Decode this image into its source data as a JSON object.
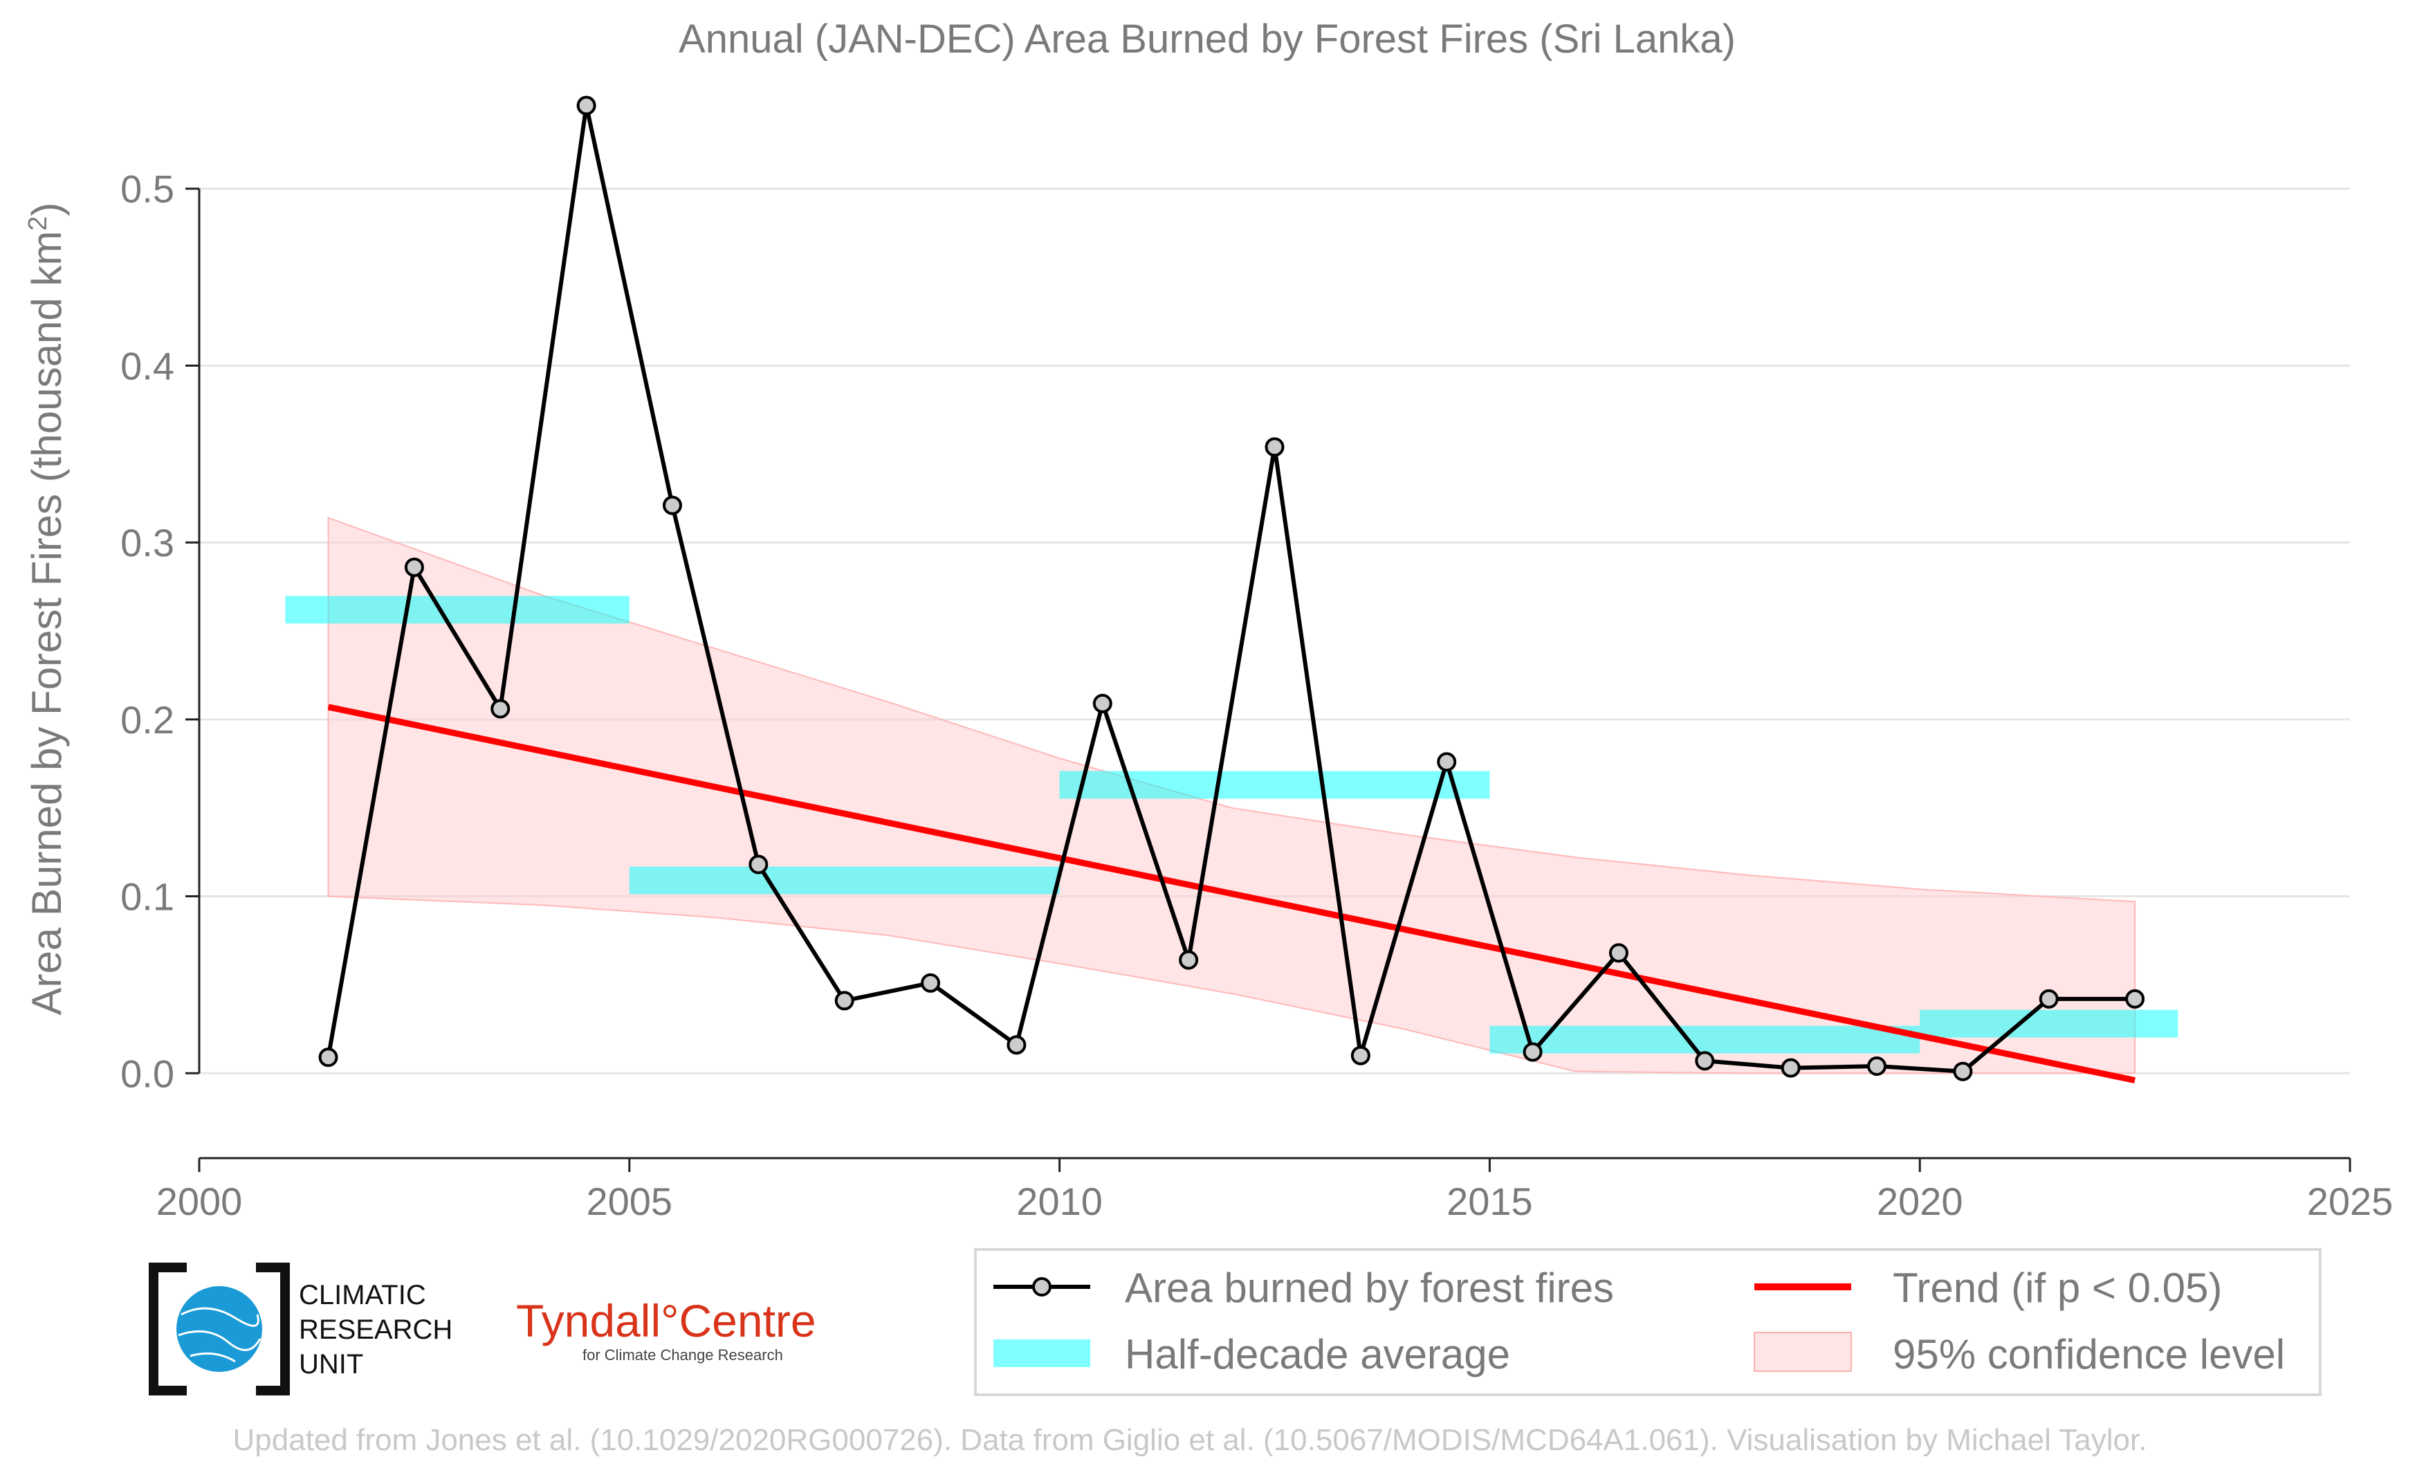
{
  "chart_data": {
    "type": "line",
    "title": "Annual (JAN-DEC) Area Burned by Forest Fires (Sri Lanka)",
    "xlabel": "",
    "ylabel": "Area Burned by Forest Fires (thousand km²)",
    "ylabel_parts": {
      "main": "Area Burned by Forest Fires (thousand km",
      "sup": "2",
      "end": ")"
    },
    "xlim": [
      2000,
      2025
    ],
    "ylim": [
      -0.048,
      0.548
    ],
    "x_ticks": [
      2000,
      2005,
      2010,
      2015,
      2020,
      2025
    ],
    "y_ticks": [
      0.0,
      0.1,
      0.2,
      0.3,
      0.4,
      0.5
    ],
    "y_tick_labels": [
      "0.0",
      "0.1",
      "0.2",
      "0.3",
      "0.4",
      "0.5"
    ],
    "grid": true,
    "series": [
      {
        "name": "Area burned by forest fires",
        "kind": "line-markers",
        "color": "#000000",
        "marker_fill": "#cccccc",
        "x": [
          2001.5,
          2002.5,
          2003.5,
          2004.5,
          2005.5,
          2006.5,
          2007.5,
          2008.5,
          2009.5,
          2010.5,
          2011.5,
          2012.5,
          2013.5,
          2014.5,
          2015.5,
          2016.5,
          2017.5,
          2018.5,
          2019.5,
          2020.5,
          2021.5,
          2022.5
        ],
        "values": [
          0.009,
          0.286,
          0.206,
          0.547,
          0.321,
          0.118,
          0.041,
          0.051,
          0.016,
          0.209,
          0.064,
          0.354,
          0.01,
          0.176,
          0.012,
          0.068,
          0.007,
          0.003,
          0.004,
          0.001,
          0.042,
          0.042
        ]
      },
      {
        "name": "Half-decade average",
        "kind": "segments",
        "color": "#00ffff",
        "opacity": 0.5,
        "segments": [
          {
            "x0": 2001.0,
            "x1": 2005.0,
            "value": 0.262
          },
          {
            "x0": 2005.0,
            "x1": 2010.0,
            "value": 0.109
          },
          {
            "x0": 2010.0,
            "x1": 2015.0,
            "value": 0.163
          },
          {
            "x0": 2015.0,
            "x1": 2020.0,
            "value": 0.019
          },
          {
            "x0": 2020.0,
            "x1": 2023.0,
            "value": 0.028
          }
        ]
      },
      {
        "name": "Trend (if p < 0.05)",
        "kind": "trend",
        "color": "#ff0000",
        "x": [
          2001.5,
          2022.5
        ],
        "values": [
          0.207,
          -0.004
        ]
      },
      {
        "name": "95% confidence level",
        "kind": "band",
        "color": "#ffcccc",
        "x": [
          2001.5,
          2004,
          2006,
          2008,
          2010,
          2012,
          2014,
          2016,
          2018,
          2020,
          2022.5
        ],
        "upper": [
          0.314,
          0.27,
          0.24,
          0.21,
          0.178,
          0.15,
          0.135,
          0.122,
          0.112,
          0.104,
          0.097
        ],
        "lower": [
          0.1,
          0.095,
          0.088,
          0.078,
          0.062,
          0.045,
          0.025,
          0.001,
          0.0,
          0.0,
          0.0
        ]
      }
    ],
    "legend": {
      "position": "bottom-right",
      "entries": [
        "Area burned by forest fires",
        "Trend (if p < 0.05)",
        "Half-decade average",
        "95% confidence level"
      ]
    }
  },
  "logos": {
    "cru": [
      "CLIMATIC",
      "RESEARCH",
      "UNIT"
    ],
    "tyndall_main": "Tyndall°Centre",
    "tyndall_sub": "for Climate Change Research"
  },
  "footer": {
    "credit": "Updated from Jones et al. (10.1029/2020RG000726). Data from Giglio et al. (10.5067/MODIS/MCD64A1.061). Visualisation by Michael Taylor."
  }
}
